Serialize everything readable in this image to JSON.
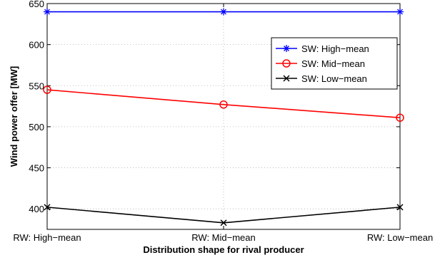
{
  "chart_data": {
    "type": "line",
    "categories": [
      "RW: High−mean",
      "RW: Mid−mean",
      "RW: Low−mean"
    ],
    "xlabel": "Distribution shape for rival producer",
    "ylabel": "Wind power offer [MW]",
    "ylim": [
      375,
      650
    ],
    "yticks": [
      400,
      450,
      500,
      550,
      600,
      650
    ],
    "grid": true,
    "legend_position": "top-right",
    "series": [
      {
        "name": "SW: High−mean",
        "values": [
          640,
          640,
          640
        ],
        "color": "#0000ff",
        "marker": "asterisk"
      },
      {
        "name": "SW: Mid−mean",
        "values": [
          545,
          527,
          511
        ],
        "color": "#ff0000",
        "marker": "circle"
      },
      {
        "name": "SW: Low−mean",
        "values": [
          402,
          383,
          402
        ],
        "color": "#000000",
        "marker": "cross"
      }
    ]
  }
}
